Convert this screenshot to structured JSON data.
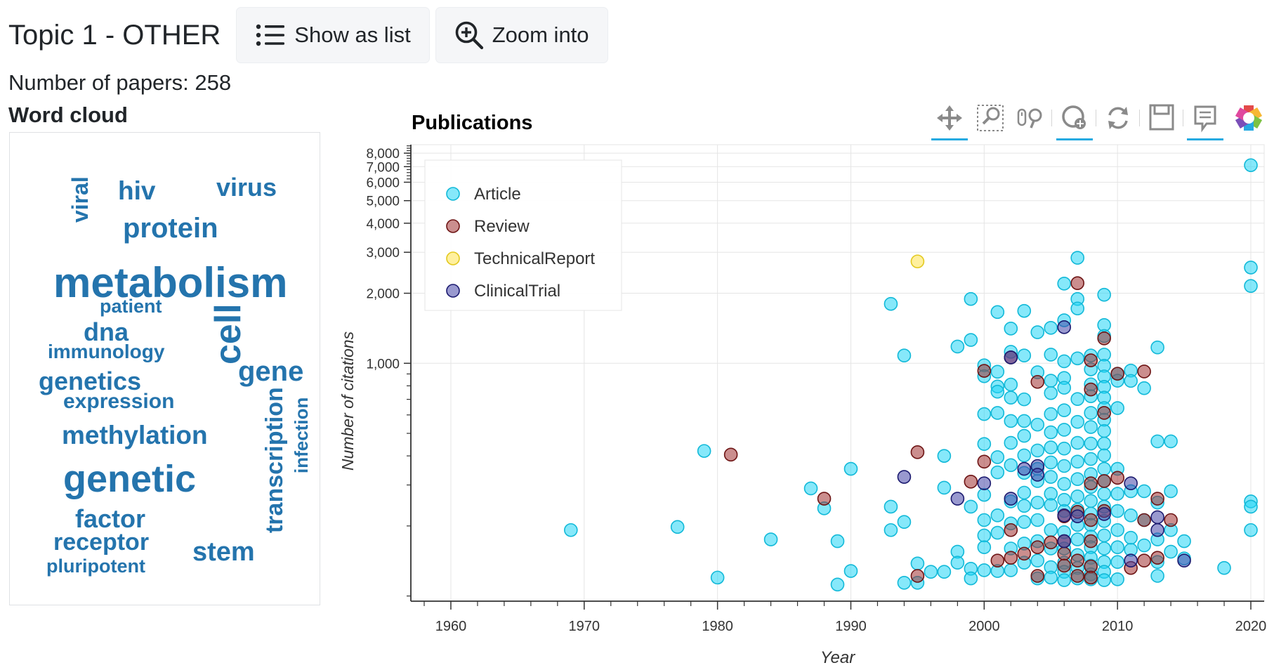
{
  "header": {
    "title": "Topic 1 - OTHER",
    "show_list_label": "Show as list",
    "zoom_label": "Zoom into",
    "papers_label": "Number of papers: 258"
  },
  "word_cloud": {
    "title": "Word cloud",
    "color": "#2474ad",
    "words": [
      "viral",
      "hiv",
      "virus",
      "protein",
      "metabolism",
      "patient",
      "cell",
      "dna",
      "immunology",
      "gene",
      "genetics",
      "expression",
      "infection",
      "transcription",
      "methylation",
      "genetic",
      "factor",
      "receptor",
      "stem",
      "pluripotent"
    ]
  },
  "toolbar": {
    "tools": [
      "pan-icon",
      "box-zoom-icon",
      "wheel-zoom-icon",
      "zoom-in-icon",
      "reset-icon",
      "save-icon",
      "hover-icon",
      "bokeh-logo-icon"
    ],
    "accent": "#26aae1"
  },
  "chart_data": {
    "type": "scatter",
    "title": "Publications",
    "xlabel": "Year",
    "ylabel": "Number of citations",
    "xlim": [
      1957,
      2021
    ],
    "ylim": [
      95,
      8700
    ],
    "y_scale": "log",
    "x_ticks": [
      1960,
      1970,
      1980,
      1990,
      2000,
      2010,
      2020
    ],
    "y_ticks": [
      1000,
      2000,
      3000,
      4000,
      5000,
      6000,
      7000,
      8000
    ],
    "y_tick_labels": [
      "1,000",
      "2,000",
      "3,000",
      "4,000",
      "5,000",
      "6,000",
      "7,000",
      "8,000"
    ],
    "legend_position": "top-left",
    "grid": true,
    "series": [
      {
        "name": "Article",
        "color": "#22d5f5",
        "stroke": "#12b9d8",
        "points": [
          [
            1969,
            192
          ],
          [
            1977,
            198
          ],
          [
            1979,
            420
          ],
          [
            1980,
            120
          ],
          [
            1984,
            175
          ],
          [
            1987,
            290
          ],
          [
            1988,
            238
          ],
          [
            1989,
            112
          ],
          [
            1989,
            172
          ],
          [
            1990,
            128
          ],
          [
            1990,
            352
          ],
          [
            1993,
            1800
          ],
          [
            1993,
            192
          ],
          [
            1993,
            242
          ],
          [
            1994,
            1080
          ],
          [
            1994,
            208
          ],
          [
            1994,
            114
          ],
          [
            1995,
            138
          ],
          [
            1995,
            114
          ],
          [
            1996,
            127
          ],
          [
            1997,
            400
          ],
          [
            1997,
            292
          ],
          [
            1997,
            127
          ],
          [
            1998,
            1180
          ],
          [
            1998,
            155
          ],
          [
            1998,
            139
          ],
          [
            1999,
            1890
          ],
          [
            1999,
            1260
          ],
          [
            1999,
            242
          ],
          [
            1999,
            131
          ],
          [
            1999,
            119
          ],
          [
            2000,
            980
          ],
          [
            2000,
            880
          ],
          [
            2000,
            605
          ],
          [
            2000,
            450
          ],
          [
            2000,
            272
          ],
          [
            2000,
            212
          ],
          [
            2000,
            182
          ],
          [
            2000,
            162
          ],
          [
            2000,
            129
          ],
          [
            2001,
            1660
          ],
          [
            2001,
            920
          ],
          [
            2001,
            795
          ],
          [
            2001,
            755
          ],
          [
            2001,
            612
          ],
          [
            2001,
            395
          ],
          [
            2001,
            340
          ],
          [
            2001,
            222
          ],
          [
            2001,
            187
          ],
          [
            2001,
            128
          ],
          [
            2002,
            1410
          ],
          [
            2002,
            1120
          ],
          [
            2002,
            810
          ],
          [
            2002,
            712
          ],
          [
            2002,
            565
          ],
          [
            2002,
            455
          ],
          [
            2002,
            365
          ],
          [
            2002,
            255
          ],
          [
            2002,
            205
          ],
          [
            2002,
            160
          ],
          [
            2002,
            129
          ],
          [
            2003,
            1680
          ],
          [
            2003,
            1080
          ],
          [
            2003,
            700
          ],
          [
            2003,
            565
          ],
          [
            2003,
            488
          ],
          [
            2003,
            402
          ],
          [
            2003,
            338
          ],
          [
            2003,
            278
          ],
          [
            2003,
            244
          ],
          [
            2003,
            208
          ],
          [
            2003,
            168
          ],
          [
            2003,
            139
          ],
          [
            2004,
            1360
          ],
          [
            2004,
            915
          ],
          [
            2004,
            545
          ],
          [
            2004,
            422
          ],
          [
            2004,
            352
          ],
          [
            2004,
            312
          ],
          [
            2004,
            252
          ],
          [
            2004,
            212
          ],
          [
            2004,
            172
          ],
          [
            2004,
            142
          ],
          [
            2004,
            119
          ],
          [
            2005,
            1420
          ],
          [
            2005,
            1090
          ],
          [
            2005,
            842
          ],
          [
            2005,
            745
          ],
          [
            2005,
            605
          ],
          [
            2005,
            505
          ],
          [
            2005,
            435
          ],
          [
            2005,
            375
          ],
          [
            2005,
            325
          ],
          [
            2005,
            275
          ],
          [
            2005,
            246
          ],
          [
            2005,
            192
          ],
          [
            2005,
            160
          ],
          [
            2005,
            133
          ],
          [
            2005,
            120
          ],
          [
            2006,
            2200
          ],
          [
            2006,
            1530
          ],
          [
            2006,
            1020
          ],
          [
            2006,
            865
          ],
          [
            2006,
            785
          ],
          [
            2006,
            628
          ],
          [
            2006,
            518
          ],
          [
            2006,
            430
          ],
          [
            2006,
            362
          ],
          [
            2006,
            303
          ],
          [
            2006,
            259
          ],
          [
            2006,
            232
          ],
          [
            2006,
            188
          ],
          [
            2006,
            160
          ],
          [
            2006,
            139
          ],
          [
            2006,
            127
          ],
          [
            2006,
            117
          ],
          [
            2007,
            2840
          ],
          [
            2007,
            1890
          ],
          [
            2007,
            1720
          ],
          [
            2007,
            1050
          ],
          [
            2007,
            702
          ],
          [
            2007,
            560
          ],
          [
            2007,
            455
          ],
          [
            2007,
            378
          ],
          [
            2007,
            318
          ],
          [
            2007,
            268
          ],
          [
            2007,
            235
          ],
          [
            2007,
            202
          ],
          [
            2007,
            175
          ],
          [
            2007,
            150
          ],
          [
            2007,
            132
          ],
          [
            2007,
            119
          ],
          [
            2008,
            1080
          ],
          [
            2008,
            942
          ],
          [
            2008,
            812
          ],
          [
            2008,
            722
          ],
          [
            2008,
            612
          ],
          [
            2008,
            532
          ],
          [
            2008,
            452
          ],
          [
            2008,
            388
          ],
          [
            2008,
            334
          ],
          [
            2008,
            294
          ],
          [
            2008,
            256
          ],
          [
            2008,
            226
          ],
          [
            2008,
            202
          ],
          [
            2008,
            180
          ],
          [
            2008,
            162
          ],
          [
            2008,
            146
          ],
          [
            2008,
            135
          ],
          [
            2008,
            124
          ],
          [
            2008,
            118
          ],
          [
            2009,
            1970
          ],
          [
            2009,
            1460
          ],
          [
            2009,
            1310
          ],
          [
            2009,
            1090
          ],
          [
            2009,
            976
          ],
          [
            2009,
            878
          ],
          [
            2009,
            792
          ],
          [
            2009,
            712
          ],
          [
            2009,
            642
          ],
          [
            2009,
            572
          ],
          [
            2009,
            512
          ],
          [
            2009,
            452
          ],
          [
            2009,
            402
          ],
          [
            2009,
            352
          ],
          [
            2009,
            312
          ],
          [
            2009,
            275
          ],
          [
            2009,
            242
          ],
          [
            2009,
            210
          ],
          [
            2009,
            182
          ],
          [
            2009,
            160
          ],
          [
            2009,
            140
          ],
          [
            2009,
            127
          ],
          [
            2009,
            117
          ],
          [
            2010,
            902
          ],
          [
            2010,
            842
          ],
          [
            2010,
            642
          ],
          [
            2010,
            352
          ],
          [
            2010,
            275
          ],
          [
            2010,
            232
          ],
          [
            2010,
            192
          ],
          [
            2010,
            162
          ],
          [
            2010,
            140
          ],
          [
            2010,
            118
          ],
          [
            2011,
            930
          ],
          [
            2011,
            840
          ],
          [
            2011,
            282
          ],
          [
            2011,
            222
          ],
          [
            2011,
            178
          ],
          [
            2011,
            158
          ],
          [
            2012,
            782
          ],
          [
            2012,
            282
          ],
          [
            2012,
            212
          ],
          [
            2012,
            165
          ],
          [
            2013,
            1170
          ],
          [
            2013,
            462
          ],
          [
            2013,
            252
          ],
          [
            2013,
            175
          ],
          [
            2013,
            140
          ],
          [
            2013,
            122
          ],
          [
            2014,
            462
          ],
          [
            2014,
            282
          ],
          [
            2014,
            192
          ],
          [
            2014,
            155
          ],
          [
            2015,
            172
          ],
          [
            2015,
            145
          ],
          [
            2018,
            132
          ],
          [
            2020,
            7100
          ],
          [
            2020,
            2580
          ],
          [
            2020,
            2150
          ],
          [
            2020,
            255
          ],
          [
            2020,
            242
          ],
          [
            2020,
            192
          ]
        ]
      },
      {
        "name": "Review",
        "color": "#a03232",
        "stroke": "#6e1515",
        "points": [
          [
            1981,
            405
          ],
          [
            1988,
            262
          ],
          [
            1995,
            415
          ],
          [
            1995,
            122
          ],
          [
            1999,
            310
          ],
          [
            2000,
            928
          ],
          [
            2000,
            378
          ],
          [
            2001,
            142
          ],
          [
            2002,
            192
          ],
          [
            2002,
            146
          ],
          [
            2002,
            1060
          ],
          [
            2003,
            152
          ],
          [
            2004,
            832
          ],
          [
            2004,
            162
          ],
          [
            2004,
            122
          ],
          [
            2005,
            170
          ],
          [
            2006,
            220
          ],
          [
            2006,
            172
          ],
          [
            2006,
            152
          ],
          [
            2006,
            135
          ],
          [
            2007,
            2210
          ],
          [
            2007,
            230
          ],
          [
            2007,
            142
          ],
          [
            2007,
            122
          ],
          [
            2008,
            1030
          ],
          [
            2008,
            772
          ],
          [
            2008,
            305
          ],
          [
            2008,
            212
          ],
          [
            2008,
            172
          ],
          [
            2008,
            134
          ],
          [
            2008,
            120
          ],
          [
            2009,
            1280
          ],
          [
            2009,
            612
          ],
          [
            2009,
            312
          ],
          [
            2009,
            232
          ],
          [
            2010,
            902
          ],
          [
            2010,
            322
          ],
          [
            2011,
            132
          ],
          [
            2012,
            922
          ],
          [
            2012,
            212
          ],
          [
            2012,
            142
          ],
          [
            2013,
            262
          ],
          [
            2013,
            146
          ],
          [
            2014,
            212
          ]
        ]
      },
      {
        "name": "TechnicalReport",
        "color": "#ffe44e",
        "stroke": "#e3c91f",
        "points": [
          [
            1995,
            2740
          ]
        ]
      },
      {
        "name": "ClinicalTrial",
        "color": "#4645a8",
        "stroke": "#1c1b70",
        "points": [
          [
            1994,
            325
          ],
          [
            1998,
            262
          ],
          [
            2000,
            305
          ],
          [
            2002,
            1060
          ],
          [
            2002,
            262
          ],
          [
            2003,
            352
          ],
          [
            2004,
            362
          ],
          [
            2004,
            332
          ],
          [
            2006,
            1430
          ],
          [
            2006,
            222
          ],
          [
            2006,
            172
          ],
          [
            2007,
            220
          ],
          [
            2009,
            225
          ],
          [
            2011,
            305
          ],
          [
            2011,
            142
          ],
          [
            2013,
            218
          ],
          [
            2013,
            192
          ],
          [
            2015,
            142
          ]
        ]
      }
    ]
  }
}
